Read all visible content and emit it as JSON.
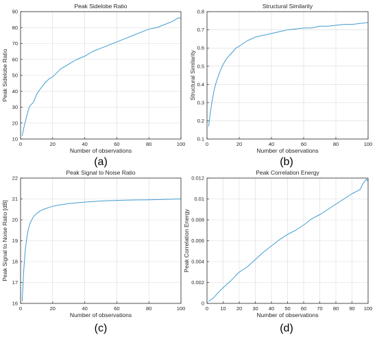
{
  "line_color": "#3d9bd0",
  "chart_data": [
    {
      "type": "line",
      "panel_label": "(a)",
      "title": "Peak Sidelobe Ratio",
      "xlabel": "Number of observations",
      "ylabel": "Peak Sidelobe Ratio",
      "xlim": [
        0,
        100
      ],
      "ylim": [
        10,
        90
      ],
      "xticks": [
        0,
        20,
        40,
        60,
        80,
        100
      ],
      "yticks": [
        10,
        20,
        30,
        40,
        50,
        60,
        70,
        80,
        90
      ],
      "grid": true,
      "series": [
        {
          "x": [
            1,
            2,
            3,
            4,
            5,
            6,
            8,
            10,
            12,
            15,
            18,
            20,
            25,
            30,
            35,
            40,
            45,
            50,
            55,
            60,
            65,
            70,
            75,
            80,
            85,
            90,
            95,
            98,
            100
          ],
          "y": [
            12,
            17,
            21,
            25,
            29,
            31,
            33,
            38,
            41,
            45,
            48,
            49,
            54,
            57,
            60,
            62,
            65,
            67,
            69,
            71,
            73,
            75,
            77,
            79,
            80,
            82,
            84,
            86,
            86
          ]
        }
      ]
    },
    {
      "type": "line",
      "panel_label": "(b)",
      "title": "Structural Similarity",
      "xlabel": "Number of observations",
      "ylabel": "Structural Similarity",
      "xlim": [
        0,
        100
      ],
      "ylim": [
        0.1,
        0.8
      ],
      "xticks": [
        0,
        20,
        40,
        60,
        80,
        100
      ],
      "yticks": [
        0.1,
        0.2,
        0.3,
        0.4,
        0.5,
        0.6,
        0.7,
        0.8
      ],
      "grid": true,
      "series": [
        {
          "x": [
            1,
            2,
            3,
            4,
            5,
            6,
            8,
            10,
            12,
            15,
            18,
            20,
            25,
            30,
            35,
            40,
            45,
            50,
            55,
            60,
            65,
            70,
            75,
            80,
            85,
            90,
            95,
            100
          ],
          "y": [
            0.17,
            0.24,
            0.3,
            0.35,
            0.39,
            0.42,
            0.47,
            0.51,
            0.54,
            0.57,
            0.6,
            0.61,
            0.64,
            0.66,
            0.67,
            0.68,
            0.69,
            0.7,
            0.705,
            0.71,
            0.71,
            0.72,
            0.72,
            0.725,
            0.73,
            0.73,
            0.735,
            0.74
          ]
        }
      ]
    },
    {
      "type": "line",
      "panel_label": "(c)",
      "title": "Peak Signal to Noise Ratio",
      "xlabel": "Number of observations",
      "ylabel": "Peak Signal to Noise Ratio [dB]",
      "xlim": [
        0,
        100
      ],
      "ylim": [
        16,
        22
      ],
      "xticks": [
        0,
        20,
        40,
        60,
        80,
        100
      ],
      "yticks": [
        16,
        17,
        18,
        19,
        20,
        21,
        22
      ],
      "grid": true,
      "series": [
        {
          "x": [
            1,
            2,
            3,
            4,
            5,
            6,
            7,
            8,
            10,
            12,
            15,
            18,
            20,
            25,
            30,
            40,
            50,
            60,
            70,
            80,
            90,
            100
          ],
          "y": [
            16.1,
            17.6,
            18.6,
            19.2,
            19.6,
            19.85,
            20.0,
            20.15,
            20.3,
            20.42,
            20.52,
            20.6,
            20.65,
            20.72,
            20.78,
            20.85,
            20.9,
            20.93,
            20.95,
            20.96,
            20.98,
            21.0
          ]
        }
      ]
    },
    {
      "type": "line",
      "panel_label": "(d)",
      "title": "Peak Correlation Energy",
      "xlabel": "Number of observations",
      "ylabel": "Peak Correlation Energy",
      "xlim": [
        0,
        100
      ],
      "ylim": [
        0,
        0.012
      ],
      "xticks": [
        0,
        10,
        20,
        30,
        40,
        50,
        60,
        70,
        80,
        90,
        100
      ],
      "yticks": [
        0,
        0.002,
        0.004,
        0.006,
        0.008,
        0.01,
        0.012
      ],
      "ytick_labels": [
        "0",
        "0.002",
        "0.004",
        "0.006",
        "0.008",
        "0.01",
        "0.012"
      ],
      "grid": true,
      "series": [
        {
          "x": [
            1,
            3,
            5,
            8,
            10,
            15,
            20,
            25,
            30,
            35,
            40,
            45,
            50,
            55,
            60,
            65,
            70,
            75,
            80,
            85,
            90,
            95,
            97,
            99,
            100
          ],
          "y": [
            0.0002,
            0.0004,
            0.0007,
            0.0012,
            0.0015,
            0.0022,
            0.003,
            0.0035,
            0.0042,
            0.0049,
            0.0055,
            0.0061,
            0.0066,
            0.007,
            0.0075,
            0.0081,
            0.0085,
            0.009,
            0.0095,
            0.01,
            0.0105,
            0.0109,
            0.0115,
            0.0119,
            0.0117
          ]
        }
      ]
    }
  ]
}
